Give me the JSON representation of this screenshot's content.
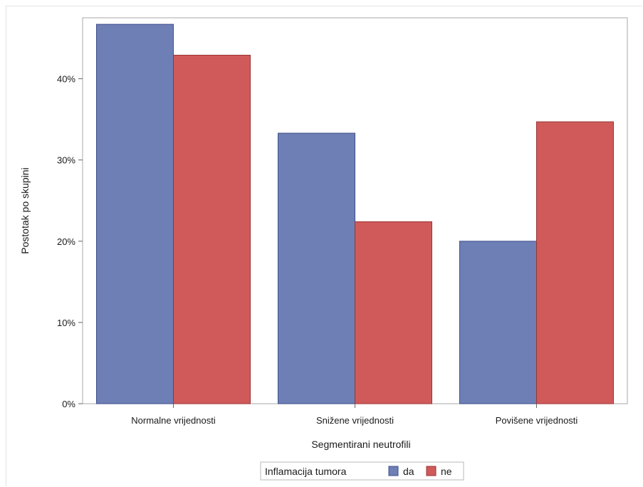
{
  "chart_data": {
    "type": "bar",
    "title": "",
    "xlabel": "Segmentirani neutrofili",
    "ylabel": "Postotak po skupini",
    "categories": [
      "Normalne vrijednosti",
      "Snižene vrijednosti",
      "Povišene vrijednosti"
    ],
    "series": [
      {
        "name": "da",
        "color": "#6d7fb4",
        "edge": "#3f4f8c",
        "values": [
          46.7,
          33.3,
          20.0
        ]
      },
      {
        "name": "ne",
        "color": "#d05a5a",
        "edge": "#9a3333",
        "values": [
          42.9,
          22.4,
          34.7
        ]
      }
    ],
    "ylim": [
      0,
      47.5
    ],
    "yticks": [
      0,
      10,
      20,
      30,
      40
    ],
    "ytick_labels": [
      "0%",
      "10%",
      "20%",
      "30%",
      "40%"
    ],
    "grid": false,
    "legend": {
      "title": "Inflamacija tumora",
      "placement": "bottom-center"
    }
  }
}
